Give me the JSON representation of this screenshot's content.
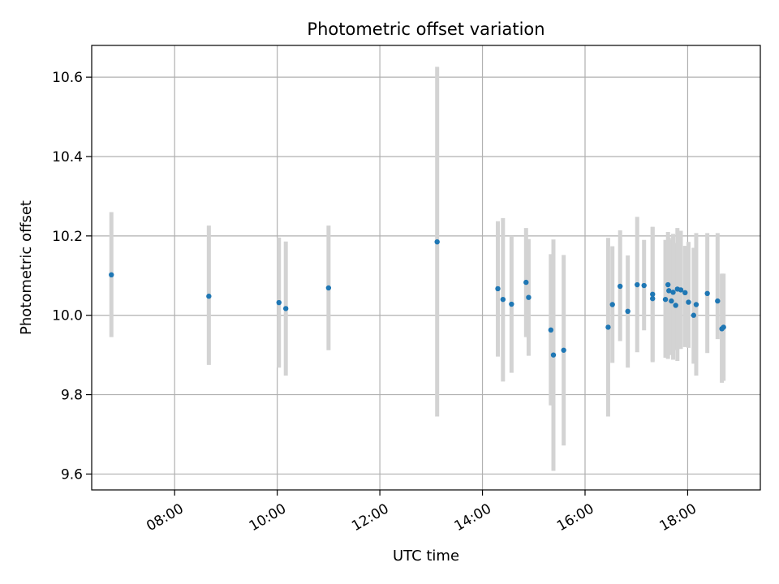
{
  "chart_data": {
    "type": "scatter",
    "title": "Photometric offset variation",
    "xlabel": "UTC time",
    "ylabel": "Photometric offset",
    "xlim": [
      "06:23",
      "19:25"
    ],
    "ylim": [
      9.56,
      10.68
    ],
    "x_ticks": [
      "08:00",
      "10:00",
      "12:00",
      "14:00",
      "16:00",
      "18:00"
    ],
    "y_ticks": [
      9.6,
      9.8,
      10.0,
      10.2,
      10.4,
      10.6
    ],
    "grid": true,
    "legend": "none",
    "colors": {
      "points": "#1f77b4",
      "error_bars": "#d3d3d3",
      "grid": "#b0b0b0",
      "axes": "#000000"
    },
    "points": [
      {
        "t": "06:46",
        "y": 10.102,
        "lo": 9.945,
        "hi": 10.26
      },
      {
        "t": "08:40",
        "y": 10.048,
        "lo": 9.875,
        "hi": 10.226
      },
      {
        "t": "10:02",
        "y": 10.032,
        "lo": 9.868,
        "hi": 10.196
      },
      {
        "t": "10:10",
        "y": 10.017,
        "lo": 9.848,
        "hi": 10.186
      },
      {
        "t": "11:00",
        "y": 10.069,
        "lo": 9.912,
        "hi": 10.226
      },
      {
        "t": "13:07",
        "y": 10.185,
        "lo": 9.745,
        "hi": 10.626
      },
      {
        "t": "14:18",
        "y": 10.067,
        "lo": 9.896,
        "hi": 10.237
      },
      {
        "t": "14:24",
        "y": 10.04,
        "lo": 9.833,
        "hi": 10.245
      },
      {
        "t": "14:34",
        "y": 10.028,
        "lo": 9.855,
        "hi": 10.2
      },
      {
        "t": "14:51",
        "y": 10.083,
        "lo": 9.945,
        "hi": 10.22
      },
      {
        "t": "14:54",
        "y": 10.045,
        "lo": 9.898,
        "hi": 10.192
      },
      {
        "t": "15:20",
        "y": 9.963,
        "lo": 9.773,
        "hi": 10.154
      },
      {
        "t": "15:23",
        "y": 9.9,
        "lo": 9.608,
        "hi": 10.191
      },
      {
        "t": "15:35",
        "y": 9.912,
        "lo": 9.672,
        "hi": 10.152
      },
      {
        "t": "16:27",
        "y": 9.97,
        "lo": 9.745,
        "hi": 10.195
      },
      {
        "t": "16:32",
        "y": 10.027,
        "lo": 9.88,
        "hi": 10.174
      },
      {
        "t": "16:41",
        "y": 10.073,
        "lo": 9.935,
        "hi": 10.214
      },
      {
        "t": "16:50",
        "y": 10.01,
        "lo": 9.868,
        "hi": 10.151
      },
      {
        "t": "17:01",
        "y": 10.077,
        "lo": 9.907,
        "hi": 10.248
      },
      {
        "t": "17:09",
        "y": 10.075,
        "lo": 9.962,
        "hi": 10.19
      },
      {
        "t": "17:19",
        "y": 10.042,
        "lo": 9.882,
        "hi": 10.223
      },
      {
        "t": "17:19",
        "y": 10.053,
        "lo": 9.885,
        "hi": 10.222
      },
      {
        "t": "17:34",
        "y": 10.04,
        "lo": 9.893,
        "hi": 10.19
      },
      {
        "t": "17:37",
        "y": 10.077,
        "lo": 9.89,
        "hi": 10.21
      },
      {
        "t": "17:38",
        "y": 10.062,
        "lo": 9.9,
        "hi": 10.196
      },
      {
        "t": "17:41",
        "y": 10.036,
        "lo": 9.9,
        "hi": 10.191
      },
      {
        "t": "17:43",
        "y": 10.058,
        "lo": 9.888,
        "hi": 10.205
      },
      {
        "t": "17:46",
        "y": 10.025,
        "lo": 9.912,
        "hi": 10.182
      },
      {
        "t": "17:48",
        "y": 10.066,
        "lo": 9.885,
        "hi": 10.22
      },
      {
        "t": "17:52",
        "y": 10.064,
        "lo": 9.915,
        "hi": 10.213
      },
      {
        "t": "17:57",
        "y": 10.057,
        "lo": 9.92,
        "hi": 10.175
      },
      {
        "t": "18:01",
        "y": 10.033,
        "lo": 9.918,
        "hi": 10.185
      },
      {
        "t": "18:07",
        "y": 10.0,
        "lo": 9.878,
        "hi": 10.17
      },
      {
        "t": "18:10",
        "y": 10.027,
        "lo": 9.848,
        "hi": 10.207
      },
      {
        "t": "18:23",
        "y": 10.055,
        "lo": 9.905,
        "hi": 10.207
      },
      {
        "t": "18:35",
        "y": 10.036,
        "lo": 9.94,
        "hi": 10.207
      },
      {
        "t": "18:40",
        "y": 9.966,
        "lo": 9.83,
        "hi": 10.105
      },
      {
        "t": "18:42",
        "y": 9.97,
        "lo": 9.835,
        "hi": 10.105
      }
    ]
  }
}
